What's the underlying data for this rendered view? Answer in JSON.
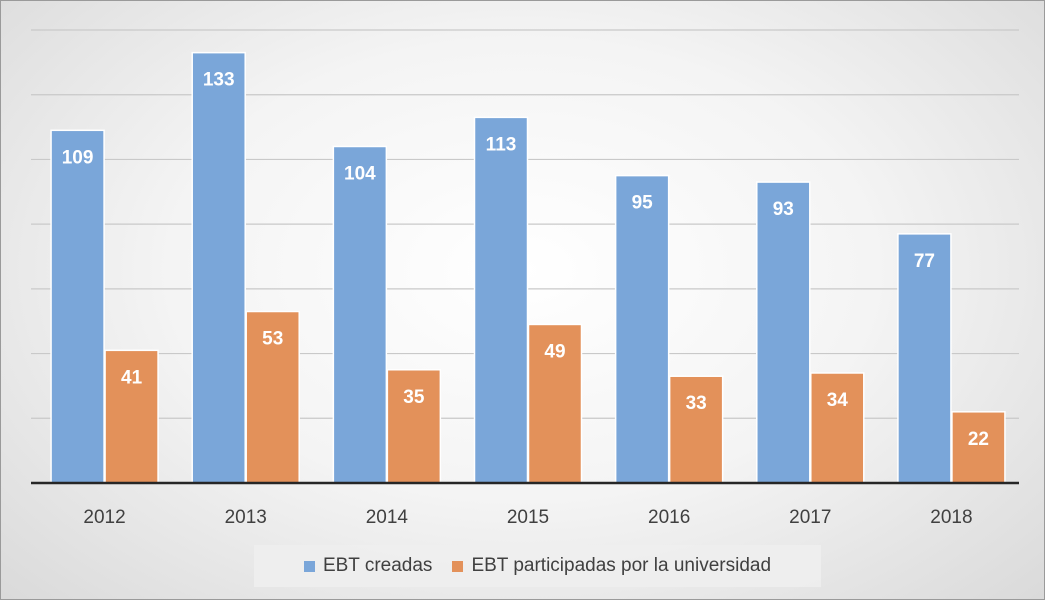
{
  "chart_data": {
    "type": "bar",
    "title": "",
    "xlabel": "",
    "ylabel": "",
    "categories": [
      "2012",
      "2013",
      "2014",
      "2015",
      "2016",
      "2017",
      "2018"
    ],
    "series": [
      {
        "name": "EBT creadas",
        "values": [
          109,
          133,
          104,
          113,
          95,
          93,
          77
        ],
        "color": "#7aa6d9"
      },
      {
        "name": "EBT participadas por la universidad",
        "values": [
          41,
          53,
          35,
          49,
          33,
          34,
          22
        ],
        "color": "#e3915a"
      }
    ],
    "ylim": [
      0,
      140
    ],
    "ytick_step": 20,
    "grid": true,
    "legend_position": "bottom"
  }
}
